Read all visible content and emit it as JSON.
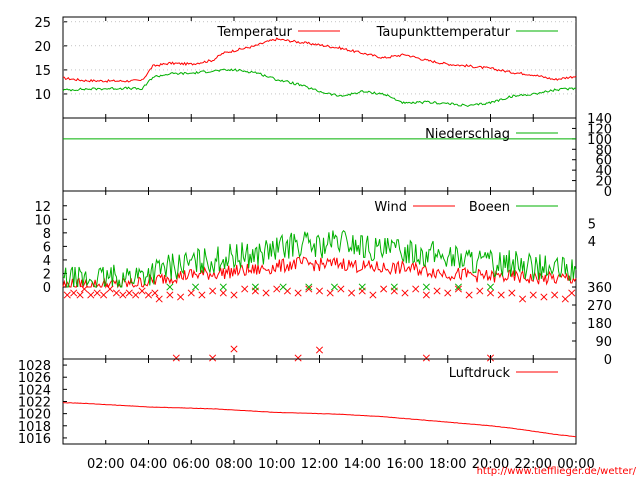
{
  "chart_data": [
    {
      "panel": "temperature",
      "type": "line",
      "ylim": [
        5,
        26
      ],
      "yticks": [
        10,
        15,
        20,
        25
      ],
      "grid": true,
      "legend": "top-right",
      "series": [
        {
          "name": "Temperatur",
          "color": "#ff0000",
          "x": [
            0,
            1,
            2,
            3,
            3.7,
            4.2,
            5,
            6,
            7,
            7.5,
            8,
            9,
            9.5,
            10,
            11,
            12,
            13,
            14,
            15,
            16,
            17,
            18,
            19,
            20,
            21,
            22,
            23,
            24
          ],
          "y": [
            13.3,
            12.8,
            12.7,
            12.7,
            12.8,
            15.8,
            16.4,
            16.2,
            17.0,
            18.5,
            19.0,
            20.0,
            20.8,
            21.4,
            20.8,
            20.2,
            19.5,
            18.5,
            17.5,
            18.2,
            17.0,
            16.2,
            15.8,
            15.3,
            14.5,
            14.0,
            13.0,
            13.7
          ]
        },
        {
          "name": "Taupunkttemperatur",
          "color": "#00b000",
          "x": [
            0,
            1,
            2,
            3,
            3.7,
            4.2,
            5,
            6,
            7,
            8,
            9,
            10,
            11,
            12,
            13,
            14,
            15,
            16,
            17,
            18,
            19,
            20,
            21,
            22,
            23,
            24
          ],
          "y": [
            10.8,
            11.0,
            11.1,
            11.2,
            11.0,
            13.5,
            14.2,
            14.3,
            14.8,
            15.0,
            14.5,
            13.0,
            12.0,
            10.5,
            9.5,
            10.5,
            10.0,
            8.0,
            8.3,
            8.0,
            7.5,
            8.2,
            9.5,
            10.0,
            10.8,
            11.2
          ]
        }
      ]
    },
    {
      "panel": "precipitation",
      "type": "line",
      "ylim": [
        0,
        140
      ],
      "yticks": [
        0,
        20,
        40,
        60,
        80,
        100,
        120,
        140
      ],
      "legend": "top-right",
      "series": [
        {
          "name": "Niederschlag",
          "color": "#00b000",
          "x": [
            0,
            24
          ],
          "y": [
            100,
            100
          ]
        }
      ]
    },
    {
      "panel": "wind",
      "type": "line",
      "ylim": [
        0,
        13
      ],
      "yticks": [
        0,
        2,
        4,
        6,
        8,
        10,
        12
      ],
      "beaufort_ticks": [
        {
          "label": "4",
          "value": 6.8
        },
        {
          "label": "5",
          "value": 9.4
        }
      ],
      "legend": "top-right",
      "series": [
        {
          "name": "Wind",
          "color": "#ff0000",
          "x": [
            0,
            1,
            2,
            3,
            4,
            5,
            6,
            7,
            8,
            9,
            10,
            11,
            12,
            13,
            14,
            15,
            16,
            17,
            18,
            19,
            20,
            21,
            22,
            23,
            24
          ],
          "y": [
            0.3,
            0.3,
            0.3,
            0.4,
            0.8,
            1.5,
            1.8,
            2.0,
            2.3,
            2.5,
            3.0,
            3.5,
            3.3,
            3.5,
            3.0,
            2.8,
            2.8,
            2.5,
            2.0,
            1.8,
            1.5,
            1.5,
            1.3,
            1.2,
            1.3
          ]
        },
        {
          "name": "Boeen",
          "color": "#00b000",
          "x": [
            0,
            1,
            2,
            3,
            4,
            5,
            6,
            7,
            8,
            9,
            10,
            11,
            12,
            13,
            14,
            15,
            16,
            17,
            18,
            19,
            20,
            21,
            22,
            23,
            24
          ],
          "y": [
            1.0,
            1.0,
            1.2,
            1.5,
            2.0,
            3.0,
            3.5,
            4.0,
            4.5,
            4.8,
            5.5,
            6.5,
            6.0,
            6.8,
            6.0,
            5.2,
            5.5,
            5.0,
            4.5,
            4.0,
            3.5,
            3.5,
            3.0,
            2.5,
            2.5
          ]
        }
      ]
    },
    {
      "panel": "wind-direction",
      "type": "scatter",
      "ylim": [
        0,
        360
      ],
      "yticks": [
        0,
        90,
        180,
        270,
        360
      ],
      "series": [
        {
          "color": "#ff0000",
          "marker": "x",
          "x": [
            0.2,
            0.5,
            0.8,
            1.0,
            1.3,
            1.6,
            1.9,
            2.2,
            2.5,
            2.8,
            3.1,
            3.4,
            3.7,
            4.0,
            4.3,
            4.5,
            5.0,
            5.5,
            6.0,
            6.5,
            7.0,
            7.5,
            8.0,
            8.5,
            9.0,
            9.5,
            10.0,
            10.5,
            11.0,
            11.5,
            12.0,
            12.5,
            13.0,
            13.5,
            14.0,
            14.5,
            15.0,
            15.5,
            16.0,
            16.5,
            17.0,
            17.5,
            18.0,
            18.5,
            19.0,
            19.5,
            20.0,
            20.5,
            21.0,
            21.5,
            22.0,
            22.5,
            23.0,
            23.5,
            23.8,
            5.3,
            7.0,
            11.0,
            17.0,
            20.0,
            8.0,
            12.0
          ],
          "y": [
            320,
            330,
            320,
            350,
            320,
            330,
            320,
            350,
            330,
            320,
            330,
            320,
            340,
            320,
            330,
            300,
            320,
            310,
            330,
            320,
            340,
            330,
            320,
            350,
            340,
            330,
            350,
            340,
            330,
            350,
            340,
            330,
            350,
            330,
            340,
            320,
            350,
            340,
            330,
            350,
            320,
            340,
            330,
            350,
            320,
            340,
            330,
            320,
            330,
            300,
            320,
            310,
            320,
            300,
            330,
            5,
            5,
            5,
            5,
            5,
            50,
            45
          ]
        },
        {
          "color": "#00b000",
          "marker": "x",
          "x": [
            5.0,
            6.2,
            7.5,
            9.0,
            10.3,
            11.5,
            12.7,
            14.0,
            15.5,
            17.0,
            18.5,
            20.0
          ],
          "y": [
            360,
            360,
            360,
            360,
            360,
            360,
            360,
            360,
            360,
            360,
            360,
            360
          ]
        }
      ]
    },
    {
      "panel": "pressure",
      "type": "line",
      "ylim": [
        1015,
        1029
      ],
      "yticks": [
        1016,
        1018,
        1020,
        1022,
        1024,
        1026,
        1028
      ],
      "legend": "top-right",
      "series": [
        {
          "name": "Luftdruck",
          "color": "#ff0000",
          "x": [
            0,
            1,
            2,
            3,
            4,
            5,
            6,
            7,
            8,
            9,
            10,
            11,
            12,
            13,
            14,
            15,
            16,
            17,
            18,
            19,
            20,
            21,
            22,
            23,
            24
          ],
          "y": [
            1021.8,
            1021.7,
            1021.5,
            1021.3,
            1021.1,
            1021.0,
            1020.9,
            1020.8,
            1020.6,
            1020.4,
            1020.2,
            1020.1,
            1020.0,
            1019.9,
            1019.7,
            1019.5,
            1019.2,
            1018.9,
            1018.6,
            1018.3,
            1018.0,
            1017.6,
            1017.1,
            1016.6,
            1016.2
          ]
        }
      ]
    }
  ],
  "x_axis": {
    "range": [
      0,
      24
    ],
    "ticks": [
      {
        "label": "02:00",
        "value": 2
      },
      {
        "label": "04:00",
        "value": 4
      },
      {
        "label": "06:00",
        "value": 6
      },
      {
        "label": "08:00",
        "value": 8
      },
      {
        "label": "10:00",
        "value": 10
      },
      {
        "label": "12:00",
        "value": 12
      },
      {
        "label": "14:00",
        "value": 14
      },
      {
        "label": "16:00",
        "value": 16
      },
      {
        "label": "18:00",
        "value": 18
      },
      {
        "label": "20:00",
        "value": 20
      },
      {
        "label": "22:00",
        "value": 22
      },
      {
        "label": "00:00",
        "value": 24
      }
    ]
  },
  "footer": {
    "url": "http://www.tiefflieger.de/wetter/"
  }
}
